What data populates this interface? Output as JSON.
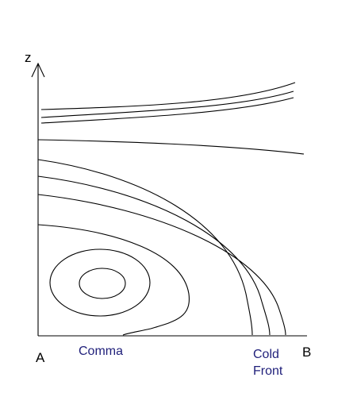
{
  "axes": {
    "vertical_label": "z",
    "origin_label": "A",
    "end_label": "B"
  },
  "labels": {
    "comma": "Comma",
    "cold_front": [
      "Cold",
      "Front"
    ]
  }
}
